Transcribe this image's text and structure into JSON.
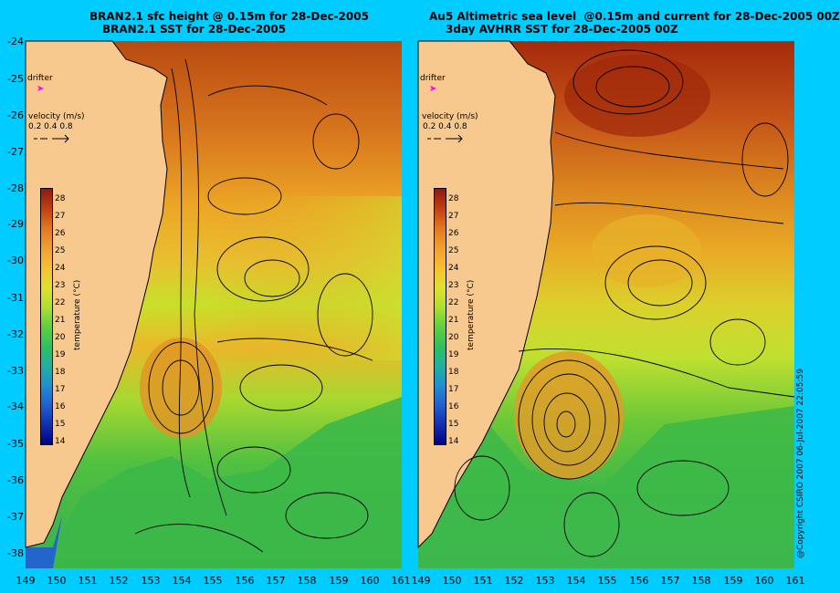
{
  "left": {
    "title_line1": "BRAN2.1 sfc height @ 0.15m for 28-Dec-2005",
    "title_line2": "BRAN2.1 SST for 28-Dec-2005"
  },
  "right": {
    "title_line1": "Au5 Altimetric sea level  @0.15m and current for 28-Dec-2005 00Z",
    "title_line2": "3day AVHRR SST for 28-Dec-2005 00Z"
  },
  "legend": {
    "drifter_label": "drifter",
    "velocity_label": "velocity (m/s)",
    "velocity_scale": "0.2 0.4 0.8",
    "temperature_label": "temperature (°C)",
    "temperature_ticks": [
      "28",
      "27",
      "26",
      "25",
      "24",
      "23",
      "22",
      "21",
      "20",
      "19",
      "18",
      "17",
      "16",
      "15",
      "14"
    ]
  },
  "axes": {
    "lat_labels": [
      "-24",
      "-25",
      "-26",
      "-27",
      "-28",
      "-29",
      "-30",
      "-31",
      "-32",
      "-33",
      "-34",
      "-35",
      "-36",
      "-37",
      "-38"
    ],
    "lon_labels_left": [
      "149",
      "150",
      "151",
      "152",
      "153",
      "154",
      "155",
      "156",
      "157",
      "158",
      "159",
      "160",
      "161"
    ],
    "lon_labels_right": [
      "149",
      "150",
      "151",
      "152",
      "153",
      "154",
      "155",
      "156",
      "157",
      "158",
      "159",
      "160",
      "161"
    ]
  },
  "copyright": "@Copyright CSIRO 2007  06-Jul-2007 22:05:59",
  "colors": {
    "background": "#00ccff",
    "land": "#f7c98f",
    "drifter": "#ff00ff"
  }
}
